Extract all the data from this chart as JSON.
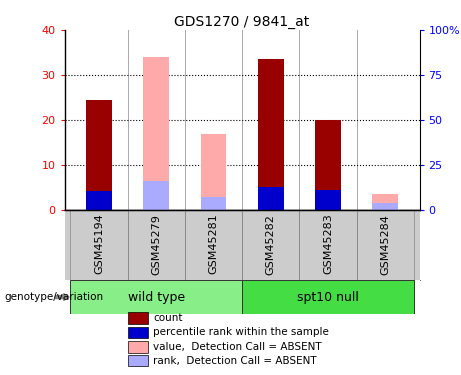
{
  "title": "GDS1270 / 9841_at",
  "samples": [
    "GSM45194",
    "GSM45279",
    "GSM45281",
    "GSM45282",
    "GSM45283",
    "GSM45284"
  ],
  "count_values": [
    24.5,
    0,
    0,
    33.5,
    20.0,
    0
  ],
  "rank_values": [
    4.2,
    0,
    0,
    5.2,
    4.5,
    0
  ],
  "absent_value_values": [
    0,
    34.0,
    17.0,
    0,
    0,
    3.5
  ],
  "absent_rank_values": [
    0,
    6.5,
    3.0,
    0,
    0,
    1.5
  ],
  "ylim": [
    0,
    40
  ],
  "yticks": [
    0,
    10,
    20,
    30,
    40
  ],
  "y2tick_labels": [
    "0",
    "25",
    "50",
    "75",
    "100%"
  ],
  "color_count": "#990000",
  "color_rank": "#0000cc",
  "color_absent_value": "#ffaaaa",
  "color_absent_rank": "#aaaaff",
  "bar_width": 0.45,
  "group_spans": [
    {
      "label": "wild type",
      "start": 0,
      "end": 2,
      "color": "#88ee88"
    },
    {
      "label": "spt10 null",
      "start": 3,
      "end": 5,
      "color": "#44dd44"
    }
  ],
  "legend_items": [
    {
      "label": "count",
      "color": "#990000"
    },
    {
      "label": "percentile rank within the sample",
      "color": "#0000cc"
    },
    {
      "label": "value,  Detection Call = ABSENT",
      "color": "#ffaaaa"
    },
    {
      "label": "rank,  Detection Call = ABSENT",
      "color": "#aaaaff"
    }
  ],
  "genotype_label": "genotype/variation",
  "title_fontsize": 10,
  "tick_fontsize": 8,
  "label_fontsize": 8,
  "legend_fontsize": 7.5
}
